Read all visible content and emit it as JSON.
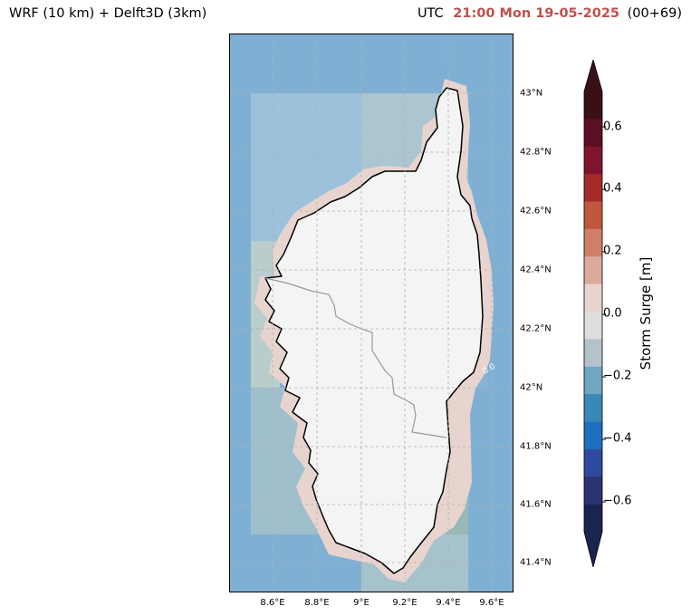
{
  "header": {
    "left_title": "WRF (10 km) + Delft3D (3km)",
    "utc_label": "UTC",
    "valid_time": "21:00 Mon 19-05-2025",
    "lead_time": "(00+69)"
  },
  "map": {
    "lat_ticks": [
      "43°N",
      "42.8°N",
      "42.6°N",
      "42.4°N",
      "42.2°N",
      "42°N",
      "41.8°N",
      "41.6°N",
      "41.4°N"
    ],
    "lon_ticks": [
      "8.6°E",
      "8.8°E",
      "9°E",
      "9.2°E",
      "9.4°E",
      "9.6°E"
    ],
    "contour_label": "0.0",
    "colors": {
      "sea": "#7fb0d4",
      "land": "#f4f4f4",
      "coast_fringe": "#e8d4cf",
      "coastline": "#000000",
      "border": "#999999",
      "grid": "#b0b0b0"
    }
  },
  "colorbar": {
    "label": "Storm Surge [m]",
    "ticks": [
      "0.6",
      "0.4",
      "0.2",
      "0.0",
      "−0.2",
      "−0.4",
      "−0.6"
    ],
    "colors": [
      "#3a0f18",
      "#5b0f24",
      "#7f1430",
      "#a52a2a",
      "#c0583d",
      "#d0806a",
      "#dcaa9d",
      "#e8d4cf",
      "#dedede",
      "#b4c2cc",
      "#6fa6c2",
      "#3a88b8",
      "#1f6fbf",
      "#2f4a9c",
      "#2a3470",
      "#1a2450"
    ]
  }
}
